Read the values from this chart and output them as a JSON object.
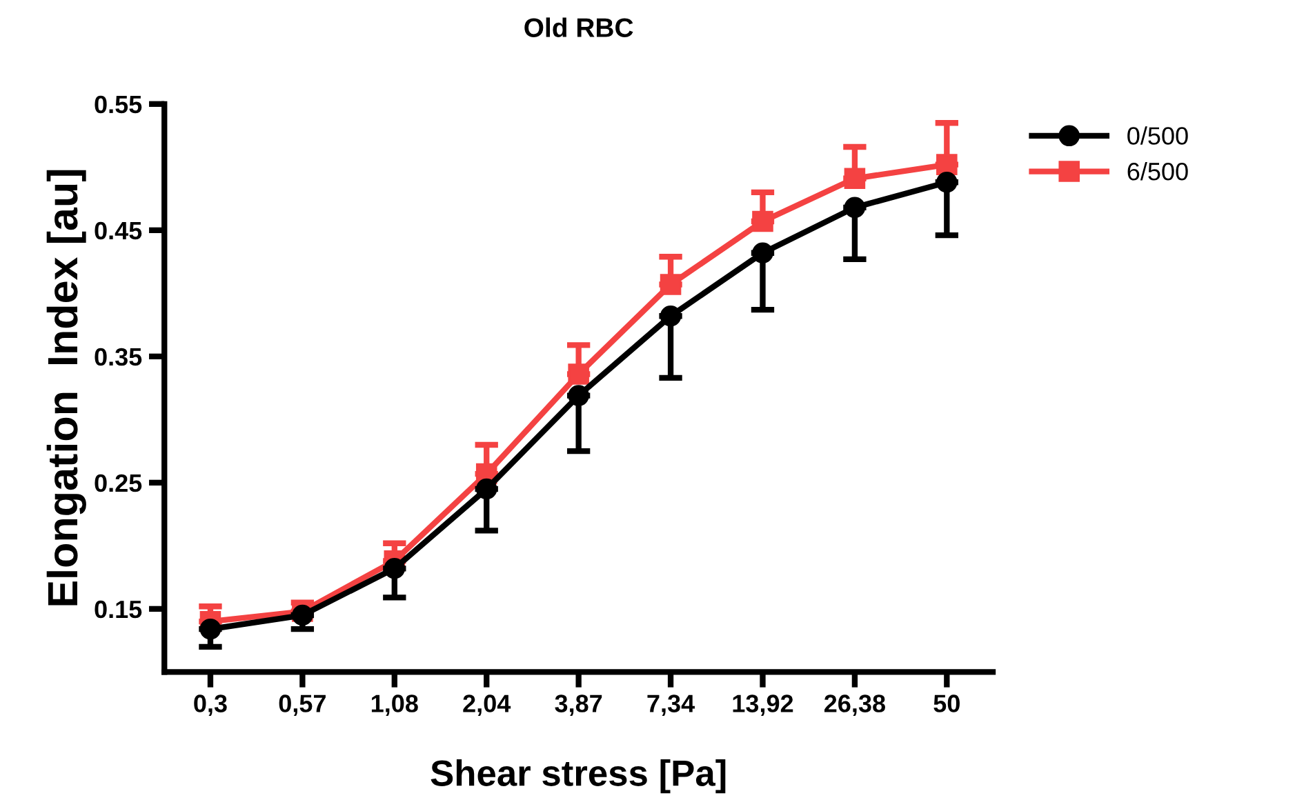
{
  "chart_data": {
    "type": "line",
    "title": "Old RBC",
    "xlabel": "Shear stress [Pa]",
    "ylabel": "Elongation  Index [au]",
    "categories": [
      "0,3",
      "0,57",
      "1,08",
      "2,04",
      "3,87",
      "7,34",
      "13,92",
      "26,38",
      "50"
    ],
    "series": [
      {
        "name": "0/500",
        "color": "#000000",
        "marker": "circle",
        "values": [
          0.134,
          0.145,
          0.182,
          0.245,
          0.319,
          0.382,
          0.432,
          0.468,
          0.488
        ],
        "errors": [
          [
            0.12,
            0.134
          ],
          [
            0.134,
            0.145
          ],
          [
            0.159,
            0.182
          ],
          [
            0.212,
            0.245
          ],
          [
            0.275,
            0.319
          ],
          [
            0.333,
            0.382
          ],
          [
            0.387,
            0.432
          ],
          [
            0.427,
            0.468
          ],
          [
            0.446,
            0.488
          ]
        ]
      },
      {
        "name": "6/500",
        "color": "#f44242",
        "marker": "square",
        "values": [
          0.14,
          0.148,
          0.188,
          0.257,
          0.336,
          0.407,
          0.457,
          0.491,
          0.502
        ],
        "errors": [
          [
            0.14,
            0.152
          ],
          [
            0.148,
            0.155
          ],
          [
            0.188,
            0.202
          ],
          [
            0.257,
            0.28
          ],
          [
            0.336,
            0.359
          ],
          [
            0.407,
            0.429
          ],
          [
            0.457,
            0.48
          ],
          [
            0.491,
            0.516
          ],
          [
            0.502,
            0.535
          ]
        ]
      }
    ],
    "ylim": [
      0.1,
      0.55
    ],
    "yticks": [
      0.15,
      0.25,
      0.35,
      0.45,
      0.55
    ],
    "grid": false,
    "legend": "top right",
    "line_style": "solid"
  }
}
